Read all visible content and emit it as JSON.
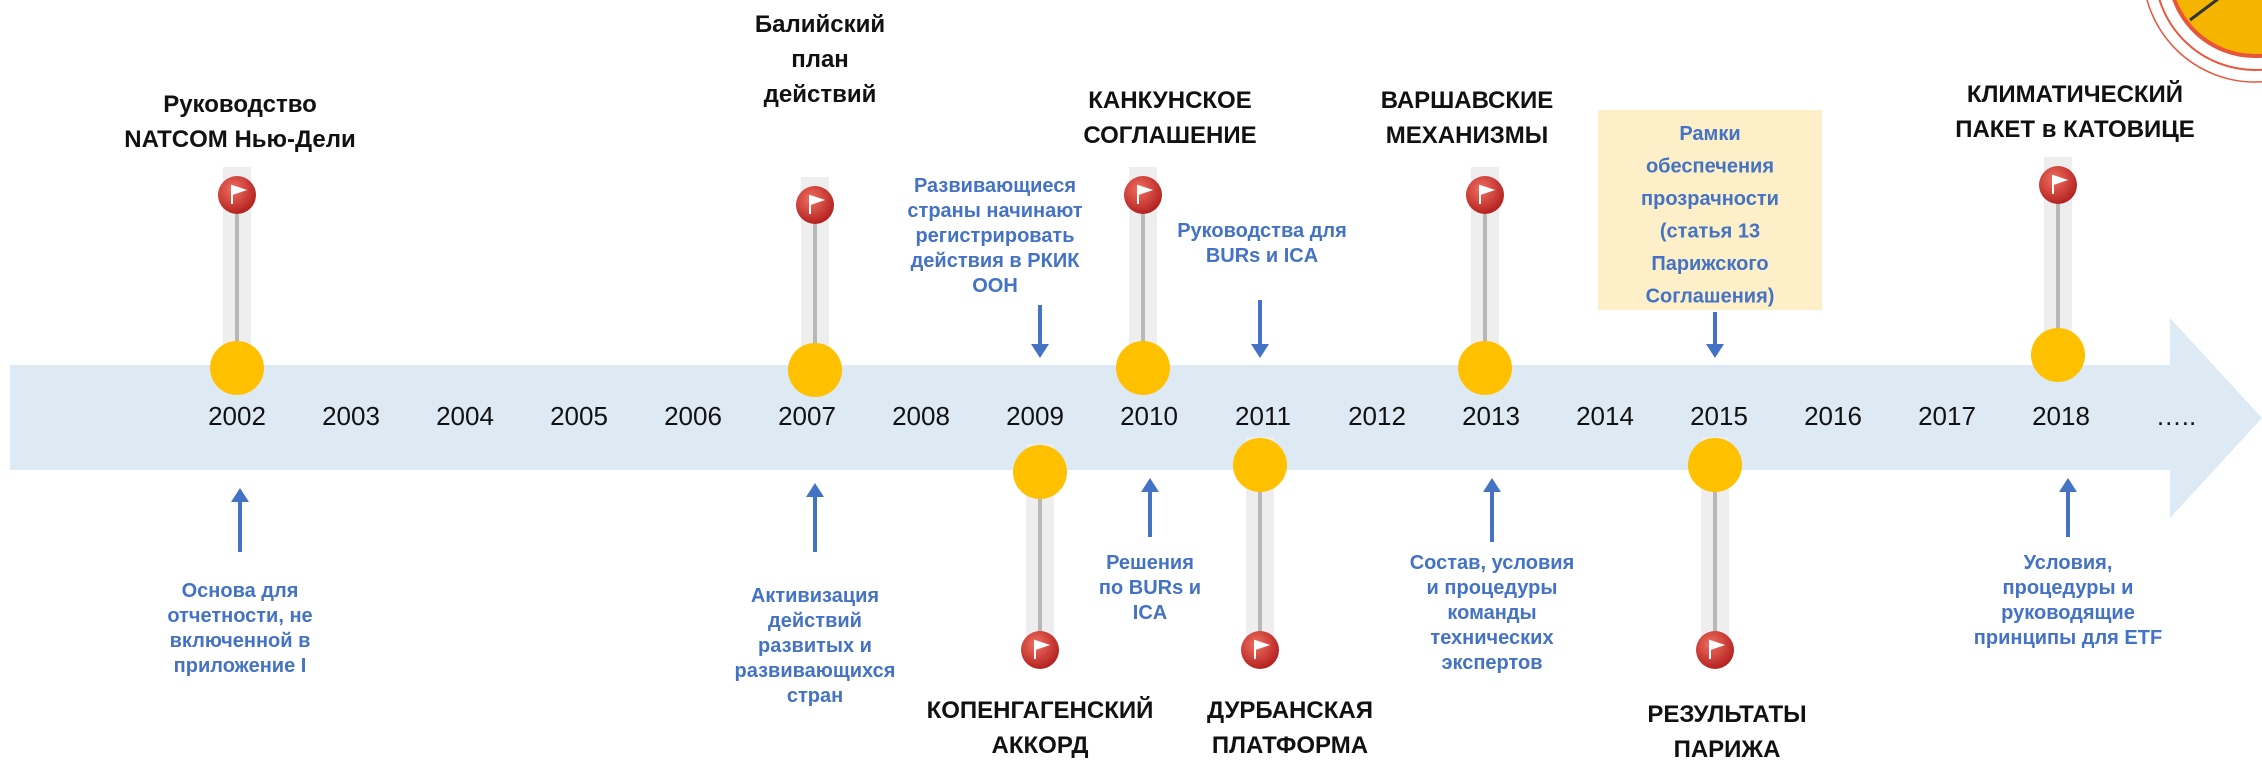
{
  "years": [
    "2002",
    "2003",
    "2004",
    "2005",
    "2006",
    "2007",
    "2008",
    "2009",
    "2010",
    "2011",
    "2012",
    "2013",
    "2014",
    "2015",
    "2016",
    "2017",
    "2018"
  ],
  "ellipsis": "…..",
  "milestones": [
    {
      "lines": [
        "Руководство",
        "NATCOM Нью-Дели"
      ]
    },
    {
      "lines": [
        "Балийский",
        "план",
        "действий"
      ]
    },
    {
      "lines": [
        "КОПЕНГАГЕНСКИЙ",
        "АККОРД"
      ]
    },
    {
      "lines": [
        "КАНКУНСКОЕ",
        "СОГЛАШЕНИЕ"
      ]
    },
    {
      "lines": [
        "ДУРБАНСКАЯ",
        "ПЛАТФОРМА"
      ]
    },
    {
      "lines": [
        "ВАРШАВСКИЕ",
        "МЕХАНИЗМЫ"
      ]
    },
    {
      "lines": [
        "РЕЗУЛЬТАТЫ",
        "ПАРИЖА"
      ]
    },
    {
      "lines": [
        "КЛИМАТИЧЕСКИЙ",
        "ПАКЕТ в КАТОВИЦЕ"
      ]
    }
  ],
  "notes": [
    {
      "lines": [
        "Развивающиеся",
        "страны начинают",
        "регистрировать",
        "действия в РКИК",
        "ООН"
      ]
    },
    {
      "lines": [
        "Руководства для",
        "BURs и ICA"
      ]
    },
    {
      "lines": [
        "Рамки",
        "обеспечения",
        "прозрачности",
        "(статья 13",
        "Парижского",
        "Соглашения)"
      ]
    },
    {
      "lines": [
        "Основа для",
        "отчетности, не",
        "включенной в",
        "приложение I"
      ]
    },
    {
      "lines": [
        "Активизация",
        "действий",
        "развитых и",
        "развивающихся",
        "стран"
      ]
    },
    {
      "lines": [
        "Решения",
        "по BURs и",
        "ICA"
      ]
    },
    {
      "lines": [
        "Состав, условия",
        "и процедуры",
        "команды",
        "технических",
        "экспертов"
      ]
    },
    {
      "lines": [
        "Условия,",
        "процедуры и",
        "руководящие",
        "принципы для ETF"
      ]
    }
  ]
}
